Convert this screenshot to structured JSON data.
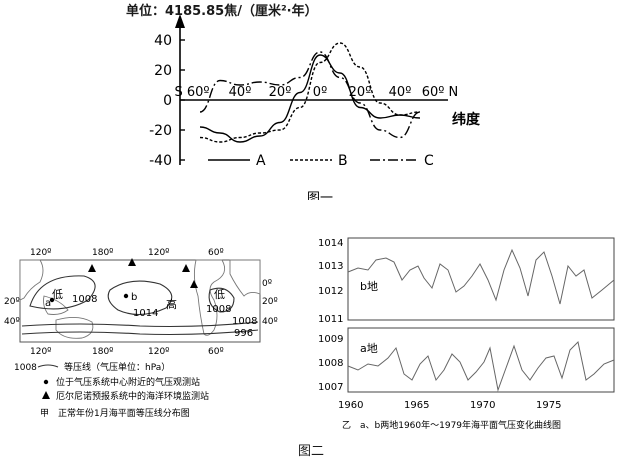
{
  "fig1": {
    "unit_label": "单位：4185.85焦/（厘米²·年）",
    "y_ticks": [
      "40",
      "20",
      "0",
      "-20",
      "-40"
    ],
    "x_ticks": [
      "S 60º",
      "40º",
      "20º",
      "0º",
      "20º",
      "40º",
      "60º N"
    ],
    "x_axis_label": "纬度",
    "legend": [
      "A",
      "B",
      "C"
    ],
    "caption": "图一",
    "chart_data": {
      "type": "line",
      "x": [
        -60,
        -50,
        -40,
        -30,
        -20,
        -10,
        0,
        10,
        20,
        30,
        40,
        50
      ],
      "ylim": [
        -45,
        45
      ],
      "series": [
        {
          "name": "A",
          "values": [
            -18,
            -22,
            -28,
            -24,
            -15,
            5,
            30,
            18,
            -5,
            -12,
            -10,
            -12
          ]
        },
        {
          "name": "B",
          "values": [
            -25,
            -28,
            -25,
            -22,
            -20,
            -5,
            25,
            38,
            22,
            -2,
            -10,
            -8
          ]
        },
        {
          "name": "C",
          "values": [
            -8,
            13,
            10,
            12,
            10,
            15,
            32,
            15,
            -2,
            -20,
            -25,
            -8
          ]
        }
      ]
    }
  },
  "fig2": {
    "map": {
      "top_lon_labels": [
        "120º",
        "180º",
        "120º",
        "60º"
      ],
      "bottom_lon_labels": [
        "120º",
        "180º",
        "120º",
        "60º"
      ],
      "lat_labels": [
        "0º",
        "20º",
        "40º"
      ],
      "lat_labels_left": [
        "20º",
        "40º"
      ],
      "labels": {
        "low_west": "低",
        "p1008_west": "1008",
        "point_a": "a",
        "point_b": "b",
        "p1014": "1014",
        "high": "高",
        "low_east": "低",
        "p1008_east": "1008",
        "p1008_bottom": "1008",
        "p996": "996"
      },
      "legend_isobar_value": "1008",
      "legend_isobar_text": "等压线（气压单位：hPa）",
      "legend_dot_text": "位于气压系统中心附近的气压观测站",
      "legend_triangle_text": "厄尔尼诺预报系统中的海洋环境监测站",
      "caption": "甲　正常年份1月海平面等压线分布图"
    },
    "pressure": {
      "b_label": "b地",
      "a_label": "a地",
      "b_ticks": [
        "1014",
        "1013",
        "1012",
        "1011"
      ],
      "a_ticks": [
        "1009",
        "1008",
        "1007"
      ],
      "x_ticks": [
        "1960",
        "1965",
        "1970",
        "1975"
      ],
      "caption": "乙　a、b两地1960年～1979年海平面气压变化曲线图"
    },
    "caption": "图二"
  }
}
